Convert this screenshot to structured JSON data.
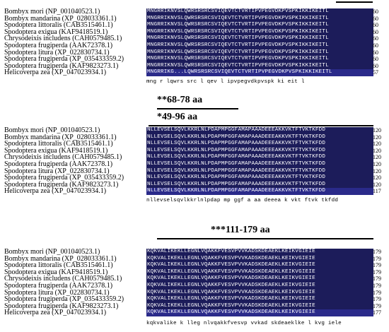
{
  "species": [
    "Bombyx mori (NP_001040523.1)",
    "Bombyx mandarina (XP_028033361.1)",
    "Spodoptera littoralis (CAB3515461.1)",
    "Spodoptera exigua (KAF9418519.1)",
    "Chrysodeixis includens (CAH0579485.1)",
    "Spodoptera frugiperda (AAK72378.1)",
    "Spodoptera litura (XP_022830734.1)",
    "Spodoptera frugiperda (XP_035433359.2)",
    "Spodoptera frugiperda (KAF9823273.1)",
    "Helicoverpa zea (XP_047023934.1)"
  ],
  "blocks": [
    {
      "sequences": [
        "MNGRRIKNVSLQWRSRSRCSVIQEVTCTVRTIPVPEGVDKPVSPKIKKIKEITL",
        "MNGRRIKNVSLQWRSRSRCSVIQEVTCTVRTIPVPEGVDKPVSPKIKKIKEITL",
        "MNGRRIKNVSLQWRSRSRCSVIQEVTCTVRTIPVPEGVDKPVSPKIKKIKEITL",
        "MNGRRIKNVSLQWRSRSRCSVIQEVTCTVRTIPVPEGVDKPVSPKIKKIKEITL",
        "MNGRRIKNVSLQWRSRSRCSVIQEVTCTVRTIPVPEGVDKPVSPKIKKIKEITL",
        "MNGRRIKNVSLQWRSRSRCSVIQEVTCTVRTIPVPEGVDKPVSPKIKKIKEITL",
        "MNGRRIKNVSLQWRSRSRCSVIQEVTCTVRTIPVPEGVDKPVSPKIKKIKEITL",
        "MNGRRIKNVSLQWRSRSRCSVIQEVTCTVRTIPVPEGVDKPVSPKIKKIKEITL",
        "MNGRRIKNVSLQWRSRSRCSVIQEVTCTVRTIPVPEGVDKPVSPKIKKIKEITL",
        "MNGRRIKG...LQWRSRSRCSVIQEVTCTVRTIPVPEGVDKPVSPKIKKIKEITL"
      ],
      "ends": [
        "60",
        "60",
        "60",
        "60",
        "60",
        "60",
        "60",
        "60",
        "60",
        "57"
      ],
      "consensus": "mng r    lqwrs src  l qev     l ipvpegvdkpvspk  ki  eit l"
    },
    {
      "sequences": [
        "NLLEVSELSQVLKKRLNLPDAPMPGGFAMAPAAADEEEAKKVKTFTVKTKFDD",
        "NLLEVSELSQVLKKRLNLPDAPMPGGFAMAPAAADEEEAKKVKTFTVKTKFDD",
        "NLLEVSELSQVLKKRLNLPDAPMPGGFAMAPAAADEEEAKKVKTFTVKTKFDD",
        "NLLEVSELSQVLKKRLNLPDAPMPGGFAMAPAAADEEEAKKVKTFTVKTKFDD",
        "NLLEVSELSQVLKKRLNLPDAPMPGGFAMAPAAADEEEAKKVKTFTVKTKFDD",
        "NLLEVSELSQVLKKRLNLPDAPMPGGFAMAPAAADEEEAKKVKTFTVKTKFDD",
        "NLLEVSELSQVLKKRLNLPDAPMPGGFAMAPAAADEEEAKKVKTFTVKTKFDD",
        "NLLEVSELSQVLKKRLNLPDAPMPGGFAMAPAAADEEEAKKVKTFTVKTKFDD",
        "NLLEVSELSQVLKKRLNLPDAPMPGGFAMAPAAADEEEAKKVKTFTVKTKFDD",
        "NLLEVSELSQVLKKRLNLPDAPMPGGFAMAPAAADEEEAKKVKTFTVKTKFDD"
      ],
      "ends": [
        "120",
        "120",
        "120",
        "120",
        "120",
        "120",
        "120",
        "120",
        "120",
        "117"
      ],
      "consensus": "nllevselsqvlkkrlnlpdap mp ggf  a  aa deeea   k vkt  ftvk  tkfdd"
    },
    {
      "sequences": [
        "KQKVALIKEKLLEGNLVQAKKFVESVPVVKADSKDEAEKLKEIKVGIEIE",
        "KQKVALIKEKLLEGNLVQAKKFVESVPVVKADSKDEAEKLKEIKVGIEIE",
        "KQKVALIKEKLLEGNLVQAKKFVESVPVVKADSKDEAEKLKEIKVGIEIE",
        "KQKVALIKEKLLEGNLVQAKKFVESVPVVKADSKDEAEKLKEIKVGIEIE",
        "KQKVALIKEKLLEGNLVQAKKFVESVPVVKADSKDEAEKLKEIKVGIEIE",
        "KQKVALIKEKLLEGNLVQAKKFVESVPVVKADSKDEAEKLKEIKVGIEIE",
        "KQKVALIKEKLLEGNLVQAKKFVESVPVVKADSKDEAEKLKEIKVGIEIE",
        "KQKVALIKEKLLEGNLVQAKKFVESVPVVKADSKDEAEKLKEIKVGIEIE",
        "KQKVALIKEKLLEGNLVQAKKFVESVPVVKADSKDEAEKLKEIKVGIEIE",
        "KQKVALIKEKLLEGNLVQAKKFVESVPVVKADSKDEAEKLKEIKVGIEIE"
      ],
      "ends": [
        "179",
        "179",
        "179",
        "179",
        "179",
        "179",
        "179",
        "179",
        "179",
        "177"
      ],
      "consensus": "kqkvalike k lleg nlvqakkfvesvp  vvkad  skdeaeklke l kvg  iele"
    }
  ],
  "annotations": {
    "a1": "**68-78 aa",
    "a2": "*49-96 aa",
    "a3": "***111-179 aa"
  }
}
